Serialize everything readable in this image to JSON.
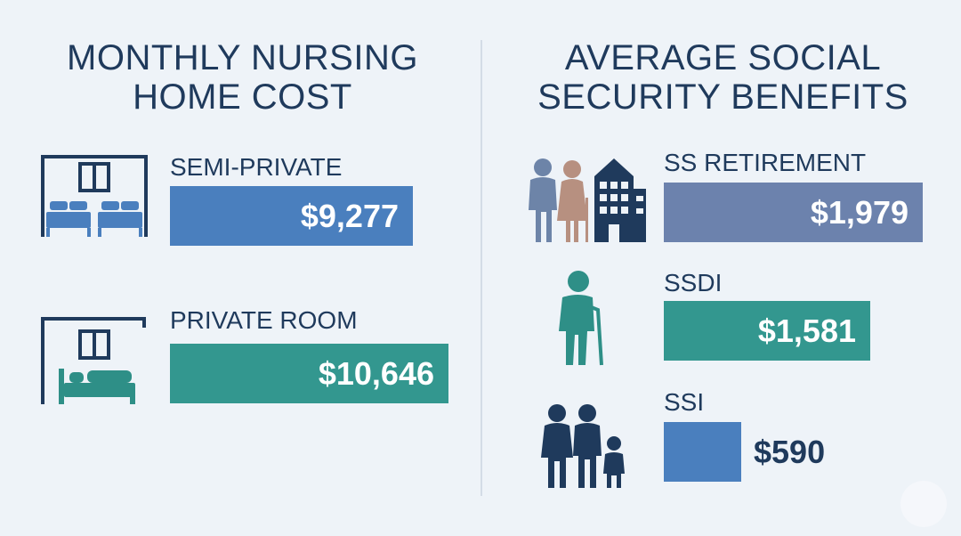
{
  "left_panel": {
    "title_line1": "MONTHLY NURSING",
    "title_line2": "HOME COST"
  },
  "right_panel": {
    "title_line1": "AVERAGE SOCIAL",
    "title_line2": "SECURITY BENEFITS"
  },
  "colors": {
    "title": "#1f3a5c",
    "semi_private": "#4a7fbe",
    "private_room": "#33978f",
    "ss_retirement": "#6c82ad",
    "ssdi": "#33978f",
    "ssi": "#4a7fbe",
    "icon_dark": "#1f3a5c",
    "icon_teal": "#2e8f87",
    "icon_slate": "#6d84a8"
  },
  "icons": [
    "double-bed-room-icon",
    "single-bed-room-icon",
    "elderly-couple-building-icon",
    "person-with-cane-icon",
    "family-icon"
  ],
  "chart_data": [
    {
      "type": "bar",
      "orientation": "horizontal",
      "title": "MONTHLY NURSING HOME COST",
      "categories": [
        "SEMI-PRIVATE",
        "PRIVATE ROOM"
      ],
      "values": [
        9277,
        10646
      ],
      "value_labels": [
        "$9,277",
        "$10,646"
      ],
      "unit": "$"
    },
    {
      "type": "bar",
      "orientation": "horizontal",
      "title": "AVERAGE SOCIAL SECURITY BENEFITS",
      "categories": [
        "SS RETIREMENT",
        "SSDI",
        "SSI"
      ],
      "values": [
        1979,
        1581,
        590
      ],
      "value_labels": [
        "$1,979",
        "$1,581",
        "$590"
      ],
      "unit": "$"
    }
  ]
}
